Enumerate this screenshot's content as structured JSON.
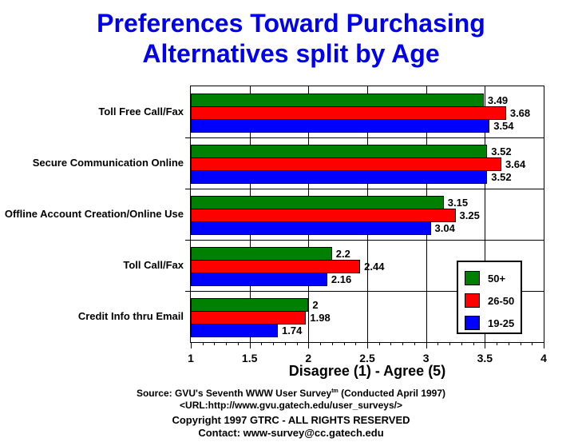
{
  "title": {
    "line1": "Preferences Toward Purchasing",
    "line2": "Alternatives split by Age",
    "color": "#0000EE"
  },
  "chart_data": {
    "type": "bar",
    "orientation": "horizontal",
    "title": "Preferences Toward Purchasing Alternatives split by Age",
    "categories": [
      "Toll Free Call/Fax",
      "Secure Communication Online",
      "Offline Account Creation/Online Use",
      "Toll Call/Fax",
      "Credit Info thru Email"
    ],
    "series": [
      {
        "name": "50+",
        "color": "#008000",
        "values": [
          3.49,
          3.52,
          3.15,
          2.2,
          2
        ],
        "labels": [
          "3.49",
          "3.52",
          "3.15",
          "2.2",
          "2"
        ]
      },
      {
        "name": "26-50",
        "color": "#FF0000",
        "values": [
          3.68,
          3.64,
          3.25,
          2.44,
          1.98
        ],
        "labels": [
          "3.68",
          "3.64",
          "3.25",
          "2.44",
          "1.98"
        ]
      },
      {
        "name": "19-25",
        "color": "#0000FF",
        "values": [
          3.54,
          3.52,
          3.04,
          2.16,
          1.74
        ],
        "labels": [
          "3.54",
          "3.52",
          "3.04",
          "2.16",
          "1.74"
        ]
      }
    ],
    "xlabel": "Disagree (1) - Agree (5)",
    "ylabel": "",
    "xlim": [
      1,
      4
    ],
    "xticks": [
      1,
      1.5,
      2,
      2.5,
      3,
      3.5,
      4
    ],
    "xtick_labels": [
      "1",
      "1.5",
      "2",
      "2.5",
      "3",
      "3.5",
      "4"
    ],
    "minor_tick_step": 0.1,
    "grid": "vertical major gridlines and horizontal category separators",
    "legend_position": "right-lower",
    "bar_outline_color": "#000000"
  },
  "legend": {
    "items": [
      {
        "label": "50+",
        "color": "#008000"
      },
      {
        "label": "26-50",
        "color": "#FF0000"
      },
      {
        "label": "19-25",
        "color": "#0000FF"
      }
    ]
  },
  "footer": {
    "source_prefix": "Source: GVU's Seventh WWW User Survey",
    "source_sup": "tm",
    "source_suffix": " (Conducted April 1997)",
    "url": "<URL:http://www.gvu.gatech.edu/user_surveys/>",
    "copyright": "Copyright 1997 GTRC - ALL RIGHTS RESERVED",
    "contact": "Contact: www-survey@cc.gatech.edu"
  }
}
